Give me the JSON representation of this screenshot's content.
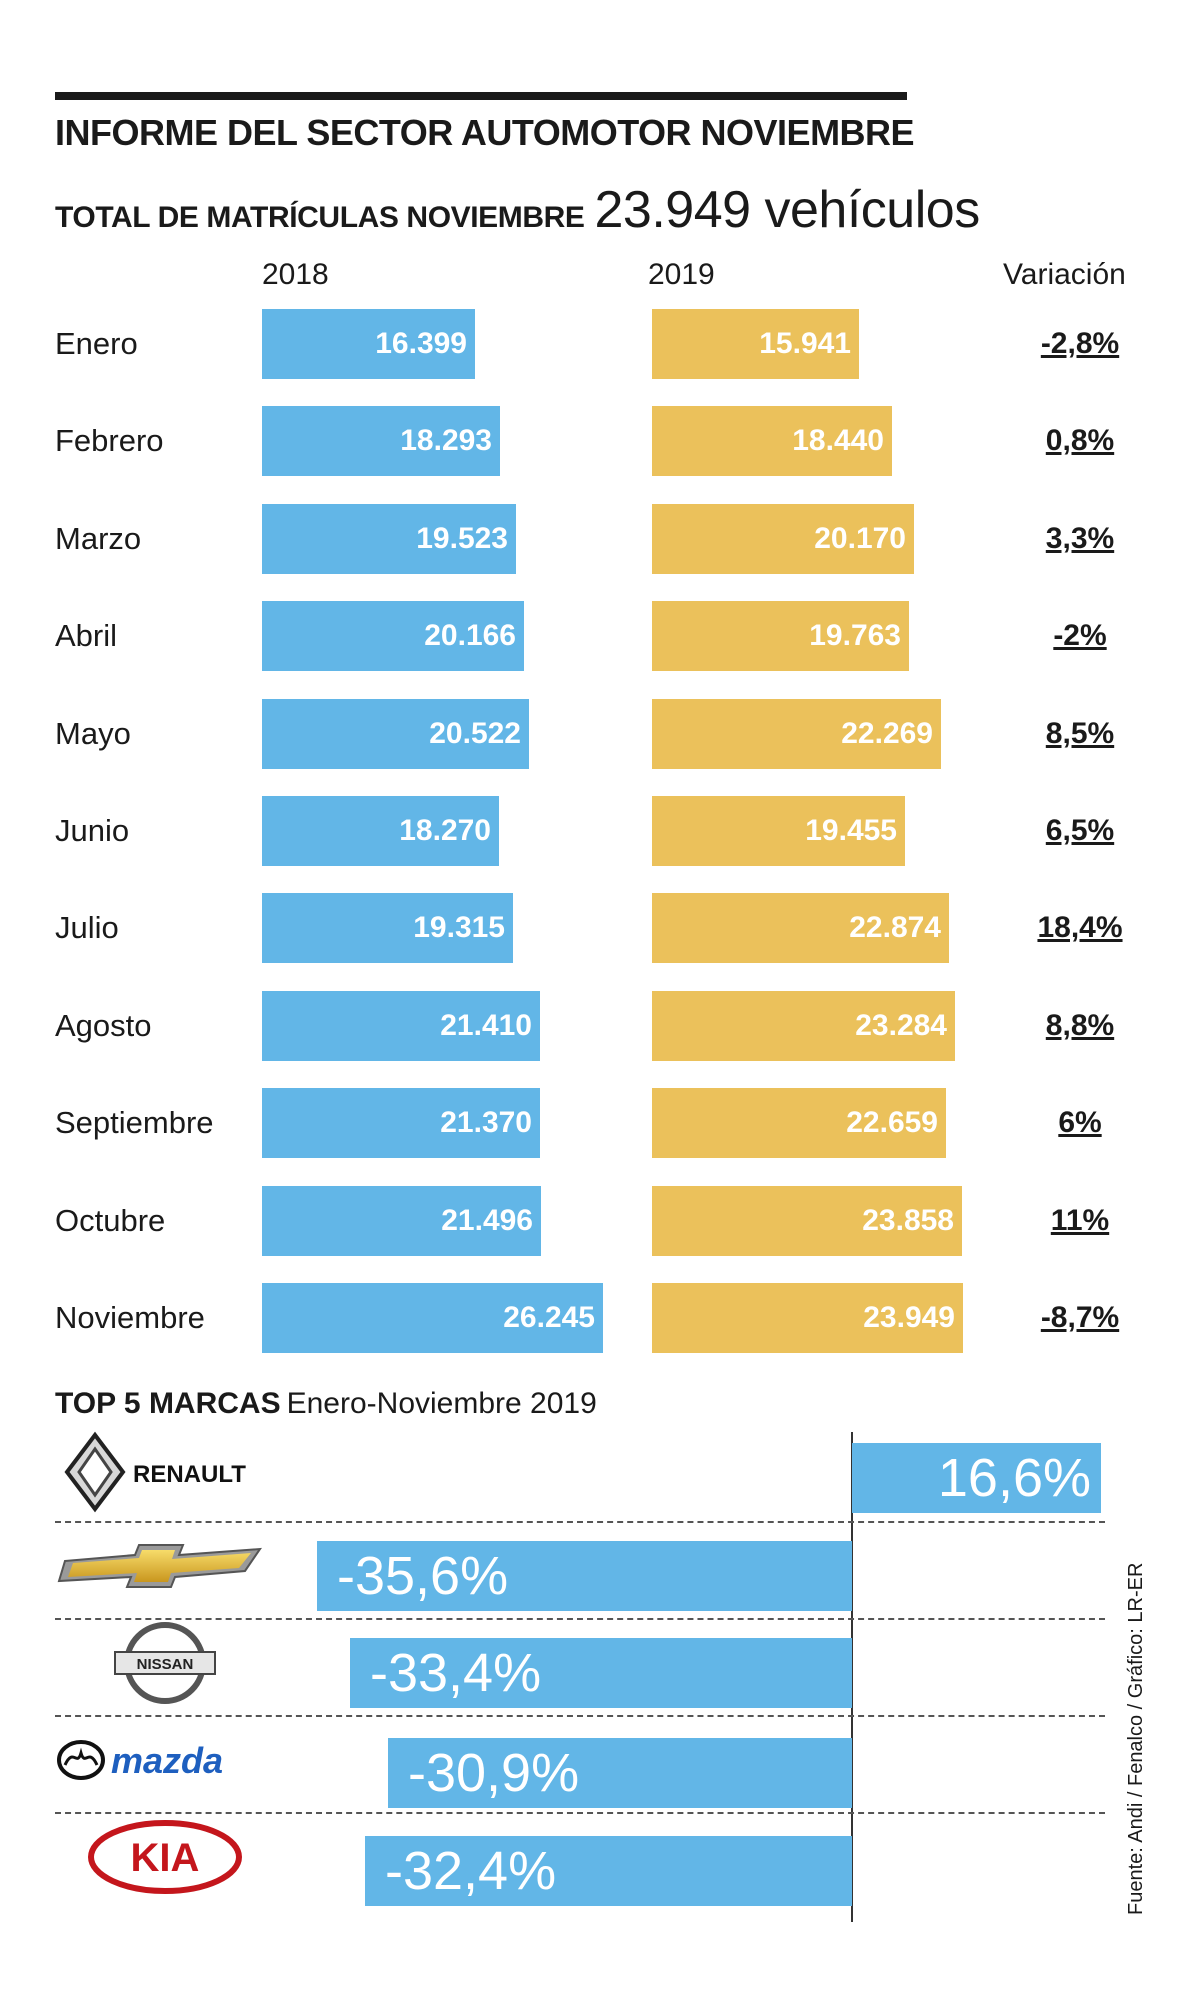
{
  "header": {
    "title": "INFORME DEL SECTOR AUTOMOTOR NOVIEMBRE",
    "subtitle_label": "TOTAL DE MATRÍCULAS NOVIEMBRE",
    "subtitle_value": "23.949 vehículos"
  },
  "columns": {
    "y2018": "2018",
    "y2019": "2019",
    "variation": "Variación"
  },
  "colors": {
    "series_2018": "#62b6e7",
    "series_2019": "#ebc15b",
    "brand_bar": "#62b6e7"
  },
  "chart_data": [
    {
      "type": "bar",
      "orientation": "horizontal",
      "title": "TOTAL DE MATRÍCULAS NOVIEMBRE",
      "categories": [
        "Enero",
        "Febrero",
        "Marzo",
        "Abril",
        "Mayo",
        "Junio",
        "Julio",
        "Agosto",
        "Septiembre",
        "Octubre",
        "Noviembre"
      ],
      "series": [
        {
          "name": "2018",
          "values": [
            16399,
            18293,
            19523,
            20166,
            20522,
            18270,
            19315,
            21410,
            21370,
            21496,
            26245
          ],
          "labels": [
            "16.399",
            "18.293",
            "19.523",
            "20.166",
            "20.522",
            "18.270",
            "19.315",
            "21.410",
            "21.370",
            "21.496",
            "26.245"
          ]
        },
        {
          "name": "2019",
          "values": [
            15941,
            18440,
            20170,
            19763,
            22269,
            19455,
            22874,
            23284,
            22659,
            23858,
            23949
          ],
          "labels": [
            "15.941",
            "18.440",
            "20.170",
            "19.763",
            "22.269",
            "19.455",
            "22.874",
            "23.284",
            "22.659",
            "23.858",
            "23.949"
          ]
        }
      ],
      "variation_header": "Variación",
      "variation": [
        "-2,8%",
        "0,8%",
        "3,3%",
        "-2%",
        "8,5%",
        "6,5%",
        "18,4%",
        "8,8%",
        "6%",
        "11%",
        "-8,7%"
      ]
    },
    {
      "type": "bar",
      "orientation": "horizontal",
      "title": "TOP 5 MARCAS",
      "subtitle": "Enero-Noviembre 2019",
      "categories": [
        "RENAULT",
        "Chevrolet",
        "NISSAN",
        "mazda",
        "KIA"
      ],
      "values": [
        16.6,
        -35.6,
        -33.4,
        -30.9,
        -32.4
      ],
      "labels": [
        "16,6%",
        "-35,6%",
        "-33,4%",
        "-30,9%",
        "-32,4%"
      ]
    }
  ],
  "brands": {
    "title_bold": "TOP 5 MARCAS",
    "title_period": "Enero-Noviembre 2019",
    "logos": [
      {
        "text": "RENAULT",
        "icon": "renault-diamond-icon"
      },
      {
        "text": "",
        "icon": "chevrolet-bowtie-icon"
      },
      {
        "text": "NISSAN",
        "icon": "nissan-logo-icon"
      },
      {
        "text": "mazda",
        "icon": "mazda-logo-icon"
      },
      {
        "text": "KIA",
        "icon": "kia-logo-icon"
      }
    ]
  },
  "source": "Fuente: Andi / Fenalco / Gráfico: LR-ER"
}
